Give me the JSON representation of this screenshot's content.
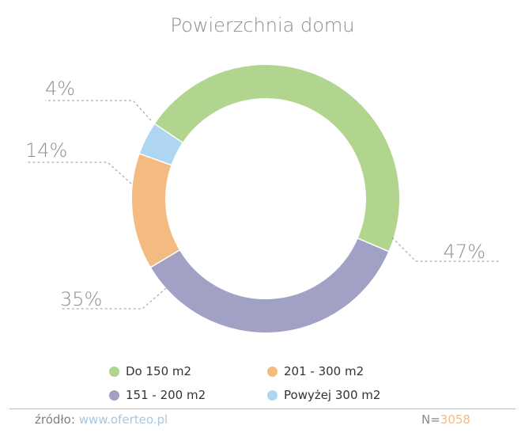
{
  "chart_data": {
    "type": "pie",
    "title": "Powierzchnia domu",
    "categories": [
      "Do 150 m2",
      "151 - 200 m2",
      "201 - 300 m2",
      "Powyżej 300 m2"
    ],
    "values": [
      47,
      35,
      14,
      4
    ],
    "value_labels": [
      "47%",
      "35%",
      "14%",
      "4%"
    ],
    "colors": [
      "#b1d58f",
      "#a1a1c6",
      "#f3bb80",
      "#aed6f3"
    ],
    "donut": true,
    "legend_position": "bottom"
  },
  "legend": {
    "items": [
      {
        "label": "Do 150 m2",
        "color": "#b1d58f"
      },
      {
        "label": "201 - 300 m2",
        "color": "#f3bb80"
      },
      {
        "label": "151 - 200 m2",
        "color": "#a1a1c6"
      },
      {
        "label": "Powyżej 300 m2",
        "color": "#aed6f3"
      }
    ]
  },
  "footer": {
    "source_label": "źródło:",
    "source_link": "www.oferteo.pl",
    "n_label": "N=",
    "n_value": "3058"
  }
}
